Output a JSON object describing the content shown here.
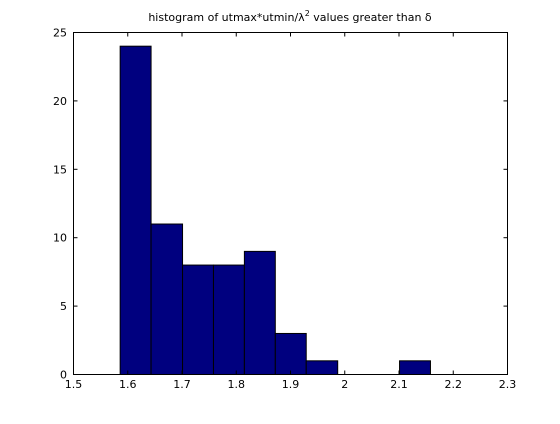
{
  "chart_data": {
    "type": "bar",
    "title": "histogram of utmax*utmin/λ² values greater than δ",
    "title_parts": {
      "prefix": "histogram of utmax*utmin/λ",
      "superscript": "2",
      "suffix": " values greater than δ"
    },
    "xlabel": "",
    "ylabel": "",
    "xlim": [
      1.5,
      2.3
    ],
    "ylim": [
      0,
      25
    ],
    "xticks": [
      "1.5",
      "1.6",
      "1.7",
      "1.8",
      "1.9",
      "2",
      "2.1",
      "2.2",
      "2.3"
    ],
    "yticks": [
      "0",
      "5",
      "10",
      "15",
      "20",
      "25"
    ],
    "bins": [
      {
        "x0": 1.586,
        "x1": 1.643,
        "count": 24
      },
      {
        "x0": 1.643,
        "x1": 1.701,
        "count": 11
      },
      {
        "x0": 1.701,
        "x1": 1.758,
        "count": 8
      },
      {
        "x0": 1.758,
        "x1": 1.815,
        "count": 8
      },
      {
        "x0": 1.815,
        "x1": 1.872,
        "count": 9
      },
      {
        "x0": 1.872,
        "x1": 1.929,
        "count": 3
      },
      {
        "x0": 1.929,
        "x1": 1.987,
        "count": 1
      },
      {
        "x0": 1.987,
        "x1": 2.044,
        "count": 0
      },
      {
        "x0": 2.044,
        "x1": 2.101,
        "count": 0
      },
      {
        "x0": 2.101,
        "x1": 2.158,
        "count": 1
      }
    ],
    "bar_color": "#00007f",
    "edge_color": "#000000",
    "grid": false,
    "legend": "none"
  }
}
